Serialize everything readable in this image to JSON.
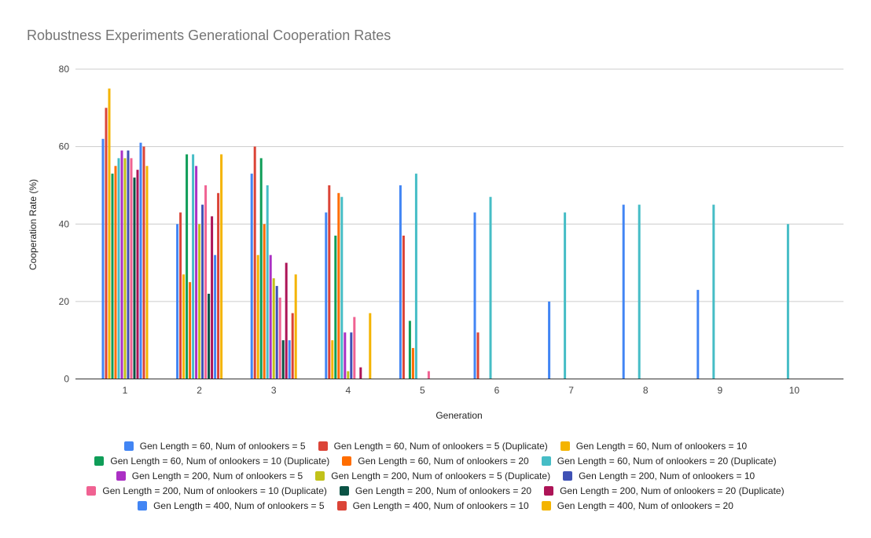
{
  "chart_data": {
    "type": "bar",
    "title": "Robustness Experiments Generational Cooperation Rates",
    "xlabel": "Generation",
    "ylabel": "Cooperation Rate (%)",
    "ylim": [
      0,
      80
    ],
    "yticks": [
      0,
      20,
      40,
      60,
      80
    ],
    "grid": true,
    "legend_position": "bottom",
    "categories": [
      "1",
      "2",
      "3",
      "4",
      "5",
      "6",
      "7",
      "8",
      "9",
      "10"
    ],
    "series": [
      {
        "name": "Gen Length = 60, Num of onlookers = 5",
        "color": "#4285f4",
        "values": [
          62,
          40,
          53,
          43,
          50,
          43,
          20,
          45,
          23,
          null
        ]
      },
      {
        "name": "Gen Length = 60, Num of onlookers = 5 (Duplicate)",
        "color": "#db4437",
        "values": [
          70,
          43,
          60,
          50,
          37,
          12,
          null,
          null,
          null,
          null
        ]
      },
      {
        "name": "Gen Length = 60, Num of onlookers = 10",
        "color": "#f4b400",
        "values": [
          75,
          27,
          32,
          10,
          null,
          null,
          null,
          null,
          null,
          null
        ]
      },
      {
        "name": "Gen Length = 60, Num of onlookers = 10 (Duplicate)",
        "color": "#0f9d58",
        "values": [
          53,
          58,
          57,
          37,
          15,
          null,
          null,
          null,
          null,
          null
        ]
      },
      {
        "name": "Gen Length = 60, Num of onlookers = 20",
        "color": "#ff6d00",
        "values": [
          55,
          25,
          40,
          48,
          8,
          null,
          null,
          null,
          null,
          null
        ]
      },
      {
        "name": "Gen Length = 60, Num of onlookers = 20 (Duplicate)",
        "color": "#46bdc6",
        "values": [
          57,
          58,
          50,
          47,
          53,
          47,
          43,
          45,
          45,
          40
        ]
      },
      {
        "name": "Gen Length = 200, Num of onlookers = 5",
        "color": "#ab30c4",
        "values": [
          59,
          55,
          32,
          12,
          null,
          null,
          null,
          null,
          null,
          null
        ]
      },
      {
        "name": "Gen Length = 200, Num of onlookers = 5 (Duplicate)",
        "color": "#c2c21a",
        "values": [
          57,
          40,
          26,
          2,
          null,
          null,
          null,
          null,
          null,
          null
        ]
      },
      {
        "name": "Gen Length = 200, Num of onlookers = 10",
        "color": "#3f51b5",
        "values": [
          59,
          45,
          24,
          12,
          null,
          null,
          null,
          null,
          null,
          null
        ]
      },
      {
        "name": "Gen Length = 200, Num of onlookers = 10 (Duplicate)",
        "color": "#f06292",
        "values": [
          57,
          50,
          21,
          16,
          2,
          null,
          null,
          null,
          null,
          null
        ]
      },
      {
        "name": "Gen Length = 200, Num of onlookers = 20",
        "color": "#0b5345",
        "values": [
          52,
          22,
          10,
          null,
          null,
          null,
          null,
          null,
          null,
          null
        ]
      },
      {
        "name": "Gen Length = 200, Num of onlookers = 20 (Duplicate)",
        "color": "#ad1457",
        "values": [
          54,
          42,
          30,
          3,
          null,
          null,
          null,
          null,
          null,
          null
        ]
      },
      {
        "name": "Gen Length = 400, Num of onlookers = 5",
        "color": "#4285f4",
        "values": [
          61,
          32,
          10,
          null,
          null,
          null,
          null,
          null,
          null,
          null
        ]
      },
      {
        "name": "Gen Length = 400, Num of onlookers = 10",
        "color": "#db4437",
        "values": [
          60,
          48,
          17,
          null,
          null,
          null,
          null,
          null,
          null,
          null
        ]
      },
      {
        "name": "Gen Length = 400, Num of onlookers = 20",
        "color": "#f4b400",
        "values": [
          55,
          58,
          27,
          17,
          null,
          null,
          null,
          null,
          null,
          null
        ]
      }
    ]
  }
}
